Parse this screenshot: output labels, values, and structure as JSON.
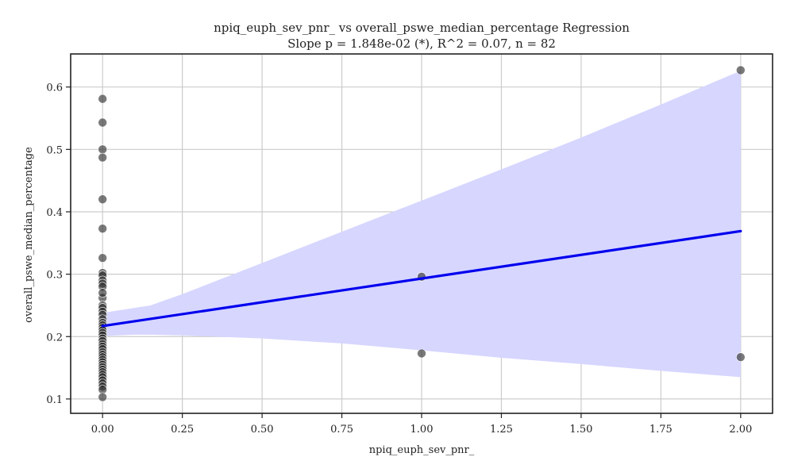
{
  "chart_data": {
    "type": "scatter",
    "title": "npiq_euph_sev_pnr_ vs overall_pswe_median_percentage Regression",
    "subtitle": "Slope p = 1.848e-02 (*), R^2 = 0.07, n = 82",
    "xlabel": "npiq_euph_sev_pnr_",
    "ylabel": "overall_pswe_median_percentage",
    "xlim": [
      -0.1,
      2.1
    ],
    "ylim": [
      0.077,
      0.653
    ],
    "grid": true,
    "x_ticks": [
      0.0,
      0.25,
      0.5,
      0.75,
      1.0,
      1.25,
      1.5,
      1.75,
      2.0
    ],
    "x_tick_labels": [
      "0.00",
      "0.25",
      "0.50",
      "0.75",
      "1.00",
      "1.25",
      "1.50",
      "1.75",
      "2.00"
    ],
    "y_ticks": [
      0.1,
      0.2,
      0.3,
      0.4,
      0.5,
      0.6
    ],
    "y_tick_labels": [
      "0.1",
      "0.2",
      "0.3",
      "0.4",
      "0.5",
      "0.6"
    ],
    "points": {
      "x": [
        0,
        0,
        0,
        0,
        0,
        0,
        0,
        0,
        0,
        0,
        0,
        0,
        0,
        0,
        0,
        0,
        0,
        0,
        0,
        0,
        0,
        0,
        0,
        0,
        0,
        0,
        0,
        0,
        0,
        0,
        0,
        0,
        0,
        0,
        0,
        0,
        0,
        0,
        0,
        0,
        0,
        0,
        0,
        0,
        0,
        0,
        1,
        1,
        2,
        2
      ],
      "y": [
        0.581,
        0.543,
        0.5,
        0.487,
        0.42,
        0.373,
        0.326,
        0.302,
        0.298,
        0.29,
        0.285,
        0.28,
        0.262,
        0.25,
        0.246,
        0.24,
        0.235,
        0.228,
        0.222,
        0.218,
        0.214,
        0.21,
        0.206,
        0.202,
        0.197,
        0.193,
        0.188,
        0.184,
        0.18,
        0.175,
        0.171,
        0.167,
        0.163,
        0.159,
        0.155,
        0.151,
        0.147,
        0.143,
        0.139,
        0.135,
        0.13,
        0.125,
        0.12,
        0.115,
        0.103,
        0.27,
        0.296,
        0.173,
        0.627,
        0.167
      ]
    },
    "regression": {
      "color": "#0000ee",
      "x": [
        0,
        2
      ],
      "y": [
        0.217,
        0.369
      ]
    },
    "confidence_band": {
      "color": "#d6d6ff",
      "x": [
        0,
        0.1,
        0.15,
        0.25,
        0.5,
        0.75,
        1.0,
        1.25,
        1.5,
        1.75,
        2.0
      ],
      "upper": [
        0.238,
        0.246,
        0.25,
        0.268,
        0.318,
        0.368,
        0.418,
        0.468,
        0.519,
        0.572,
        0.626
      ],
      "lower": [
        0.201,
        0.203,
        0.203,
        0.202,
        0.197,
        0.189,
        0.178,
        0.166,
        0.156,
        0.145,
        0.135
      ]
    },
    "point_color": "#333333"
  }
}
